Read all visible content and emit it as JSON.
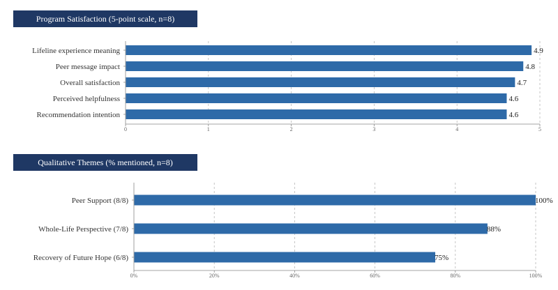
{
  "chart_data": [
    {
      "type": "bar",
      "orientation": "horizontal",
      "title": "Program Satisfaction (5-point scale, n=8)",
      "categories": [
        "Lifeline experience meaning",
        "Peer message impact",
        "Overall satisfaction",
        "Perceived helpfulness",
        "Recommendation intention"
      ],
      "values": [
        4.9,
        4.8,
        4.7,
        4.6,
        4.6
      ],
      "value_labels": [
        "4.9",
        "4.8",
        "4.7",
        "4.6",
        "4.6"
      ],
      "xlim": [
        0,
        5
      ],
      "ticks": [
        "0",
        "1",
        "2",
        "3",
        "4",
        "5"
      ],
      "grid": true,
      "bar_color": "#2e6aa8"
    },
    {
      "type": "bar",
      "orientation": "horizontal",
      "title": "Qualitative Themes (% mentioned, n=8)",
      "categories": [
        "Peer Support (8/8)",
        "Whole-Life Perspective (7/8)",
        "Recovery of Future Hope (6/8)"
      ],
      "values": [
        100,
        88,
        75
      ],
      "value_labels": [
        "100%",
        "88%",
        "75%"
      ],
      "xlim": [
        0,
        100
      ],
      "ticks": [
        "0%",
        "20%",
        "40%",
        "60%",
        "80%",
        "100%"
      ],
      "grid": true,
      "bar_color": "#2e6aa8"
    }
  ]
}
